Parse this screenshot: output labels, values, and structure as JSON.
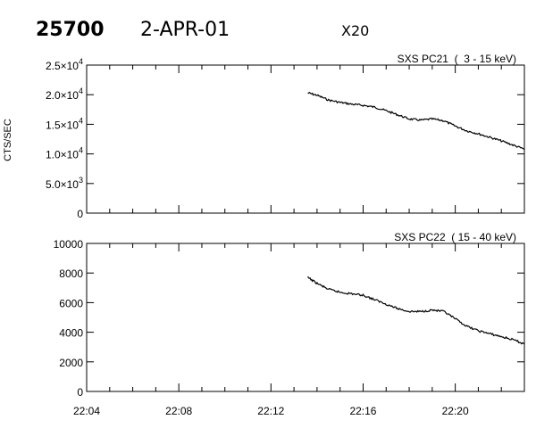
{
  "header": {
    "id": "25700",
    "date": "2-APR-01",
    "flare_class": "X20"
  },
  "chart_data": [
    {
      "type": "line",
      "title": "SXS PC21  (  3 - 15 keV)",
      "ylabel": "CTS/SEC",
      "xlim": [
        "22:04",
        "22:23"
      ],
      "ylim": [
        0,
        25000
      ],
      "y_ticks": [
        {
          "value": 0,
          "mant": "0",
          "exp": ""
        },
        {
          "value": 5000,
          "mant": "5.0×10",
          "exp": "3"
        },
        {
          "value": 10000,
          "mant": "1.0×10",
          "exp": "4"
        },
        {
          "value": 15000,
          "mant": "1.5×10",
          "exp": "4"
        },
        {
          "value": 20000,
          "mant": "2.0×10",
          "exp": "4"
        },
        {
          "value": 25000,
          "mant": "2.5×10",
          "exp": "4"
        }
      ],
      "x_ticks": [
        "22:04",
        "22:08",
        "22:12",
        "22:16",
        "22:20"
      ],
      "series": [
        {
          "x": [
            "22:13:36",
            "22:14:00",
            "22:14:30",
            "22:15:00",
            "22:15:30",
            "22:16:00",
            "22:16:30",
            "22:17:00",
            "22:17:30",
            "22:18:00",
            "22:18:30",
            "22:19:00",
            "22:19:30",
            "22:20:00",
            "22:20:30",
            "22:21:00",
            "22:21:30",
            "22:22:00",
            "22:22:30",
            "22:23:00"
          ],
          "y": [
            20300,
            19900,
            19100,
            18700,
            18400,
            18200,
            17900,
            17300,
            16600,
            15900,
            15700,
            15900,
            15600,
            14700,
            13900,
            13400,
            12800,
            12200,
            11500,
            10800
          ]
        }
      ]
    },
    {
      "type": "line",
      "title": "SXS PC22  ( 15 - 40 keV)",
      "ylabel": "",
      "xlim": [
        "22:04",
        "22:23"
      ],
      "ylim": [
        0,
        10000
      ],
      "y_ticks": [
        {
          "value": 0,
          "mant": "0",
          "exp": ""
        },
        {
          "value": 2000,
          "mant": "2000",
          "exp": ""
        },
        {
          "value": 4000,
          "mant": "4000",
          "exp": ""
        },
        {
          "value": 6000,
          "mant": "6000",
          "exp": ""
        },
        {
          "value": 8000,
          "mant": "8000",
          "exp": ""
        },
        {
          "value": 10000,
          "mant": "10000",
          "exp": ""
        }
      ],
      "x_ticks": [
        "22:04",
        "22:08",
        "22:12",
        "22:16",
        "22:20"
      ],
      "series": [
        {
          "x": [
            "22:13:36",
            "22:14:00",
            "22:14:30",
            "22:15:00",
            "22:15:30",
            "22:16:00",
            "22:16:30",
            "22:17:00",
            "22:17:30",
            "22:18:00",
            "22:18:30",
            "22:19:00",
            "22:19:30",
            "22:20:00",
            "22:20:30",
            "22:21:00",
            "22:21:30",
            "22:22:00",
            "22:22:30",
            "22:23:00"
          ],
          "y": [
            7700,
            7300,
            6900,
            6700,
            6600,
            6500,
            6200,
            5900,
            5600,
            5400,
            5400,
            5500,
            5400,
            4900,
            4400,
            4100,
            3900,
            3700,
            3500,
            3200
          ]
        }
      ]
    }
  ]
}
